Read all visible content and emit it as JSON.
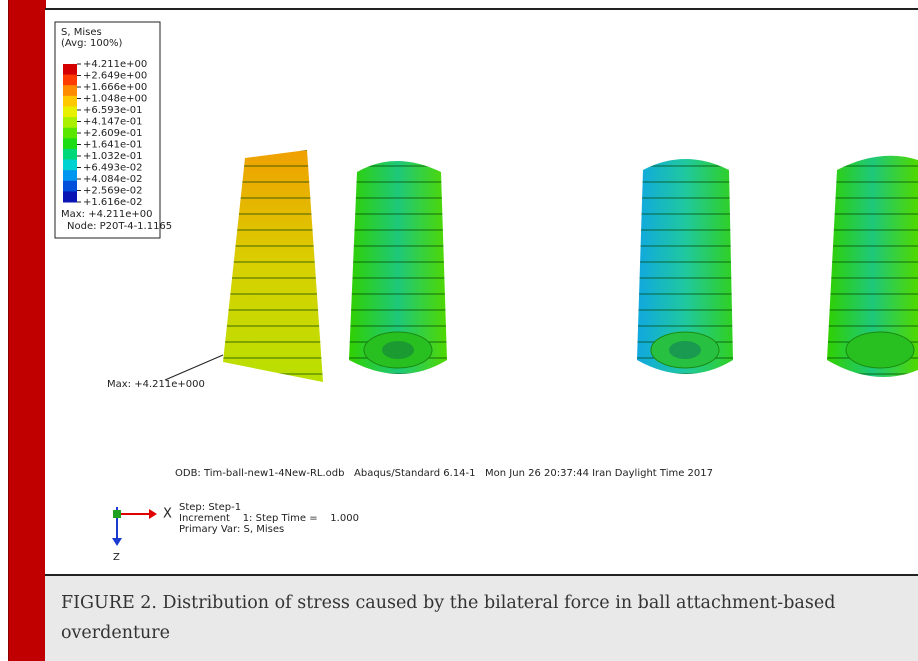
{
  "legend": {
    "title": "S, Mises",
    "subtitle": "(Avg: 100%)",
    "labels": [
      "+4.211e+00",
      "+2.649e+00",
      "+1.666e+00",
      "+1.048e+00",
      "+6.593e-01",
      "+4.147e-01",
      "+2.609e-01",
      "+1.641e-01",
      "+1.032e-01",
      "+6.493e-02",
      "+4.084e-02",
      "+2.569e-02",
      "+1.616e-02"
    ],
    "colors": [
      "#d40000",
      "#ff3c00",
      "#ff8c00",
      "#ffc800",
      "#e6f000",
      "#a8f000",
      "#5ae600",
      "#1edc14",
      "#00d778",
      "#00d2d2",
      "#0096f0",
      "#0050dc",
      "#0a14b4"
    ],
    "max": "Max: +4.211e+00",
    "node": "Node: P20T-4-1.1165"
  },
  "annotation": "Max: +4.211e+000",
  "odb_line": "ODB: Tim-ball-new1-4New-RL.odb   Abaqus/Standard 6.14-1   Mon Jun 26 20:37:44 Iran Daylight Time 2017",
  "triad": {
    "x": "X",
    "z": "Z"
  },
  "step": [
    "Step: Step-1",
    "Increment    1: Step Time =    1.000",
    "Primary Var: S, Mises"
  ],
  "caption": "FIGURE 2. Distribution of stress caused by the bilateral force in ball attachment-based overdenture"
}
